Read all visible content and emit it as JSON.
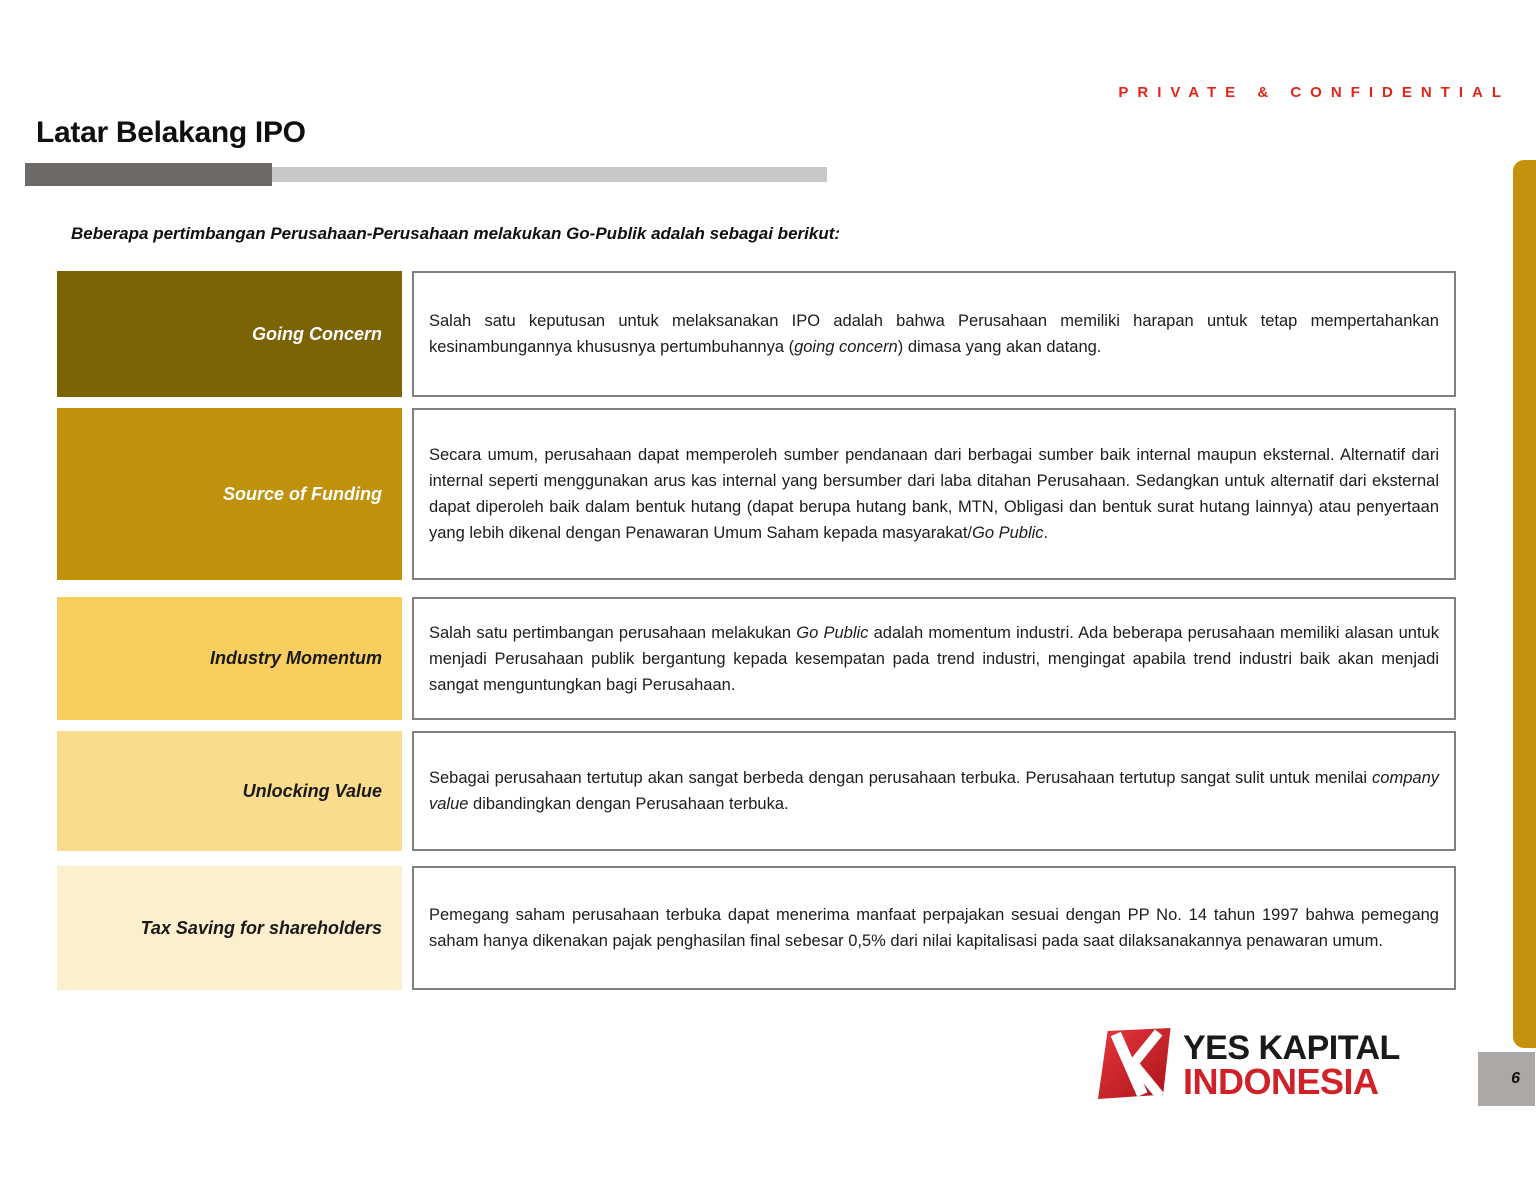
{
  "header": {
    "confidential": "PRIVATE & CONFIDENTIAL",
    "title": "Latar Belakang IPO"
  },
  "intro": "Beberapa pertimbangan Perusahaan-Perusahaan melakukan Go-Publik adalah sebagai berikut:",
  "colors": {
    "confidential_red": "#e02519",
    "bar_dark": "#6e6a68",
    "bar_light": "#c9c7c5",
    "box_border": "#7f7f7f",
    "sidebar_gold": "#c4920d",
    "pagebox_gray": "#aca8a6",
    "logo_red": "#d02128"
  },
  "rows": [
    {
      "label": "Going Concern",
      "label_bg": "#7c6305",
      "label_color": "#ffffff",
      "description": [
        {
          "text": "Salah satu keputusan untuk melaksanakan IPO adalah bahwa Perusahaan memiliki harapan untuk tetap mempertahankan kesinambungannya khususnya pertumbuhannya (",
          "italic": false
        },
        {
          "text": "going concern",
          "italic": true
        },
        {
          "text": ") dimasa yang akan datang.",
          "italic": false
        }
      ]
    },
    {
      "label": "Source of Funding",
      "label_bg": "#c0920c",
      "label_color": "#ffffff",
      "description": [
        {
          "text": "Secara umum, perusahaan dapat memperoleh sumber pendanaan dari berbagai sumber baik internal maupun eksternal. Alternatif dari internal seperti menggunakan arus kas internal yang bersumber dari laba ditahan Perusahaan. Sedangkan untuk alternatif dari eksternal dapat diperoleh baik dalam bentuk hutang (dapat berupa hutang bank, MTN, Obligasi dan bentuk surat hutang lainnya) atau penyertaan yang lebih dikenal dengan Penawaran Umum Saham kepada masyarakat/",
          "italic": false
        },
        {
          "text": "Go Public",
          "italic": true
        },
        {
          "text": ".",
          "italic": false
        }
      ]
    },
    {
      "label": "Industry Momentum",
      "label_bg": "#f8ce5f",
      "label_color": "#1a1a1a",
      "description": [
        {
          "text": "Salah satu pertimbangan perusahaan melakukan ",
          "italic": false
        },
        {
          "text": "Go Public",
          "italic": true
        },
        {
          "text": " adalah momentum industri. Ada beberapa perusahaan memiliki alasan untuk menjadi Perusahaan publik bergantung kepada kesempatan pada trend industri, mengingat apabila trend industri baik akan menjadi sangat menguntungkan bagi Perusahaan.",
          "italic": false
        }
      ]
    },
    {
      "label": "Unlocking Value",
      "label_bg": "#fadc8c",
      "label_color": "#1a1a1a",
      "description": [
        {
          "text": "Sebagai perusahaan tertutup akan sangat berbeda dengan perusahaan terbuka. Perusahaan tertutup sangat sulit untuk menilai ",
          "italic": false
        },
        {
          "text": "company value",
          "italic": true
        },
        {
          "text": " dibandingkan dengan Perusahaan terbuka.",
          "italic": false
        }
      ]
    },
    {
      "label": "Tax Saving for shareholders",
      "label_bg": "#fcefce",
      "label_color": "#1a1a1a",
      "description": [
        {
          "text": "Pemegang saham perusahaan terbuka dapat menerima manfaat perpajakan sesuai dengan PP No. 14 tahun 1997 bahwa pemegang saham hanya dikenakan pajak penghasilan final sebesar 0,5% dari nilai kapitalisasi pada saat dilaksanakannya penawaran umum.",
          "italic": false
        }
      ]
    }
  ],
  "footer": {
    "logo_line1": "YES KAPITAL",
    "logo_line2": "INDONESIA",
    "page_number": "6"
  }
}
